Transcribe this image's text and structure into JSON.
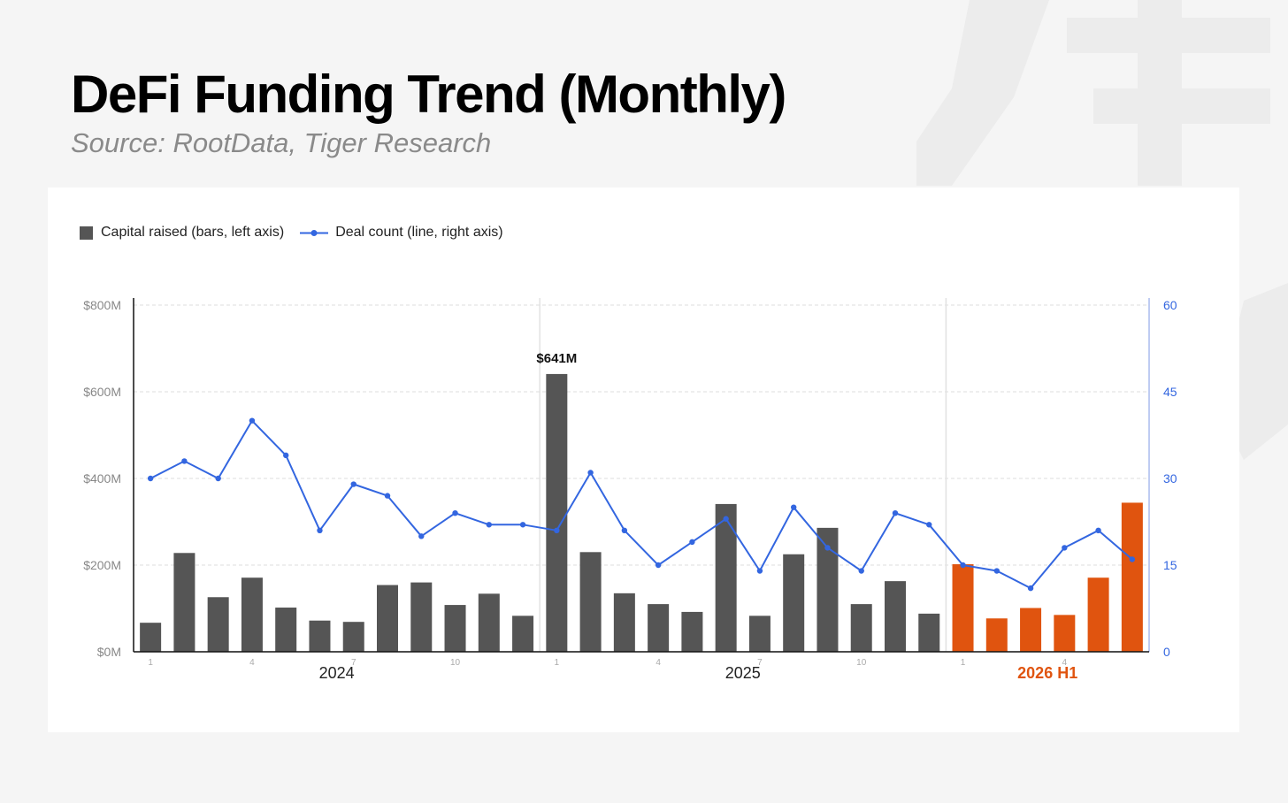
{
  "title": "DeFi Funding Trend (Monthly)",
  "subtitle": "Source: RootData, Tiger Research",
  "colors": {
    "bar_default": "#555555",
    "bar_highlight": "#e0540f",
    "line": "#3366e0",
    "left_axis_text": "#888888",
    "right_axis_text": "#3366e0"
  },
  "legend": {
    "bars": "Capital raised (bars, left axis)",
    "line": "Deal count (line, right axis)"
  },
  "chart_data": {
    "type": "bar",
    "categories": [
      "2024-01",
      "2024-02",
      "2024-03",
      "2024-04",
      "2024-05",
      "2024-06",
      "2024-07",
      "2024-08",
      "2024-09",
      "2024-10",
      "2024-11",
      "2024-12",
      "2025-01",
      "2025-02",
      "2025-03",
      "2025-04",
      "2025-05",
      "2025-06",
      "2025-07",
      "2025-08",
      "2025-09",
      "2025-10",
      "2025-11",
      "2025-12",
      "2026-01",
      "2026-02",
      "2026-03",
      "2026-04",
      "2026-05",
      "2026-06"
    ],
    "series": [
      {
        "name": "Capital raised (bars, left axis)",
        "type": "bar",
        "axis": "left",
        "values": [
          67,
          228,
          126,
          171,
          102,
          72,
          69,
          154,
          160,
          108,
          134,
          83,
          641,
          230,
          135,
          110,
          92,
          341,
          83,
          225,
          286,
          110,
          163,
          88,
          202,
          77,
          101,
          85,
          171,
          344
        ]
      },
      {
        "name": "Deal count (line, right axis)",
        "type": "line",
        "axis": "right",
        "values": [
          30,
          33,
          30,
          40,
          34,
          21,
          29,
          27,
          20,
          24,
          22,
          22,
          21,
          31,
          21,
          15,
          19,
          23,
          14,
          25,
          18,
          14,
          24,
          22,
          15,
          14,
          11,
          18,
          21,
          16
        ]
      }
    ],
    "highlight_from_index": 24,
    "left_axis": {
      "ylim": [
        0,
        800
      ],
      "ticks": [
        "$0M",
        "$200M",
        "$400M",
        "$600M",
        "$800M"
      ]
    },
    "right_axis": {
      "ylim": [
        0,
        60
      ],
      "ticks": [
        "0",
        "15",
        "30",
        "45",
        "60"
      ]
    },
    "month_ticks": [
      "1",
      "4",
      "7",
      "10"
    ],
    "year_labels": [
      "2024",
      "2025",
      "2026 H1"
    ],
    "annotation": {
      "index": 12,
      "text": "$641M"
    },
    "grid": true,
    "legend_position": "top-left"
  }
}
